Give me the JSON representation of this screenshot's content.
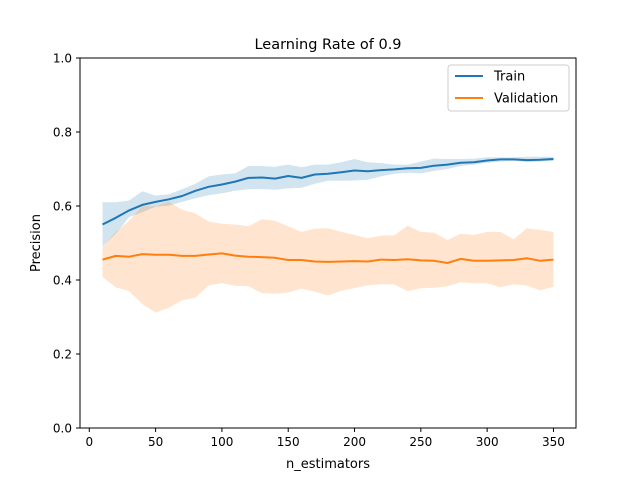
{
  "chart_data": {
    "type": "line",
    "title": "Learning Rate of 0.9",
    "xlabel": "n_estimators",
    "ylabel": "Precision",
    "xlim": [
      -7,
      367
    ],
    "ylim": [
      0.0,
      1.0
    ],
    "xticks": [
      0,
      50,
      100,
      150,
      200,
      250,
      300,
      350
    ],
    "xtick_labels": [
      "0",
      "50",
      "100",
      "150",
      "200",
      "250",
      "300",
      "350"
    ],
    "yticks": [
      0.0,
      0.2,
      0.4,
      0.6,
      0.8,
      1.0
    ],
    "ytick_labels": [
      "0.0",
      "0.2",
      "0.4",
      "0.6",
      "0.8",
      "1.0"
    ],
    "grid": false,
    "legend": "upper right",
    "x": [
      10,
      20,
      30,
      40,
      50,
      60,
      70,
      80,
      90,
      100,
      110,
      120,
      130,
      140,
      150,
      160,
      170,
      180,
      190,
      200,
      210,
      220,
      230,
      240,
      250,
      260,
      270,
      280,
      290,
      300,
      310,
      320,
      330,
      340,
      350
    ],
    "series": [
      {
        "name": "Train",
        "color": "#1f77b4",
        "band_color": "#1f77b4",
        "values": [
          0.55,
          0.568,
          0.588,
          0.603,
          0.611,
          0.618,
          0.627,
          0.641,
          0.652,
          0.658,
          0.666,
          0.676,
          0.677,
          0.674,
          0.681,
          0.676,
          0.685,
          0.687,
          0.691,
          0.696,
          0.694,
          0.697,
          0.699,
          0.702,
          0.703,
          0.709,
          0.712,
          0.717,
          0.718,
          0.723,
          0.726,
          0.726,
          0.724,
          0.725,
          0.727
        ],
        "lower": [
          0.491,
          0.525,
          0.57,
          0.583,
          0.598,
          0.601,
          0.611,
          0.621,
          0.629,
          0.634,
          0.641,
          0.645,
          0.646,
          0.644,
          0.648,
          0.649,
          0.66,
          0.668,
          0.668,
          0.669,
          0.671,
          0.68,
          0.687,
          0.69,
          0.688,
          0.695,
          0.7,
          0.708,
          0.712,
          0.717,
          0.72,
          0.722,
          0.719,
          0.72,
          0.722
        ],
        "upper": [
          0.61,
          0.61,
          0.615,
          0.64,
          0.628,
          0.632,
          0.645,
          0.66,
          0.68,
          0.685,
          0.688,
          0.708,
          0.708,
          0.706,
          0.712,
          0.705,
          0.712,
          0.712,
          0.718,
          0.727,
          0.718,
          0.716,
          0.712,
          0.712,
          0.72,
          0.728,
          0.727,
          0.727,
          0.728,
          0.732,
          0.732,
          0.732,
          0.733,
          0.733,
          0.733
        ]
      },
      {
        "name": "Validation",
        "color": "#ff7f0e",
        "band_color": "#ff7f0e",
        "values": [
          0.455,
          0.465,
          0.463,
          0.47,
          0.468,
          0.468,
          0.465,
          0.465,
          0.469,
          0.472,
          0.466,
          0.463,
          0.462,
          0.46,
          0.454,
          0.454,
          0.45,
          0.449,
          0.45,
          0.451,
          0.45,
          0.455,
          0.454,
          0.456,
          0.453,
          0.452,
          0.446,
          0.457,
          0.452,
          0.452,
          0.453,
          0.454,
          0.459,
          0.452,
          0.455
        ],
        "lower": [
          0.408,
          0.38,
          0.37,
          0.335,
          0.312,
          0.325,
          0.345,
          0.352,
          0.385,
          0.392,
          0.384,
          0.383,
          0.365,
          0.363,
          0.366,
          0.377,
          0.368,
          0.358,
          0.371,
          0.378,
          0.386,
          0.388,
          0.388,
          0.37,
          0.378,
          0.379,
          0.383,
          0.394,
          0.391,
          0.391,
          0.38,
          0.388,
          0.385,
          0.372,
          0.382
        ],
        "upper": [
          0.49,
          0.53,
          0.56,
          0.6,
          0.6,
          0.612,
          0.59,
          0.58,
          0.558,
          0.552,
          0.55,
          0.545,
          0.564,
          0.56,
          0.545,
          0.53,
          0.539,
          0.54,
          0.53,
          0.522,
          0.513,
          0.52,
          0.521,
          0.547,
          0.53,
          0.528,
          0.508,
          0.525,
          0.522,
          0.53,
          0.53,
          0.51,
          0.54,
          0.535,
          0.53
        ]
      }
    ]
  }
}
